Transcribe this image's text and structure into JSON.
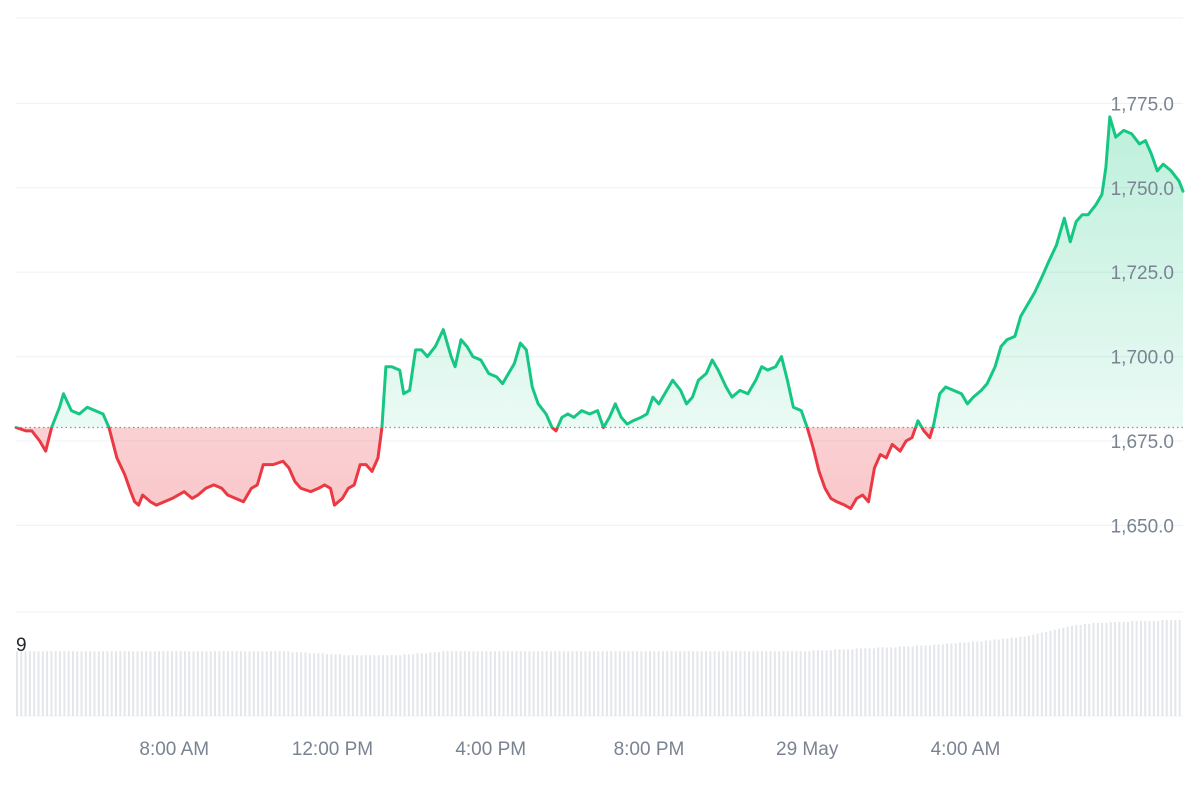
{
  "colors": {
    "up": "#16c784",
    "down": "#ea3943",
    "up_fill_top": "#16c784",
    "down_fill": "#ea3943",
    "grid": "#eef0f3",
    "axis_text": "#7a8392",
    "baseline": "#8a919e",
    "volume_bar": "#e3e6ea"
  },
  "chart_data": {
    "type": "area",
    "title": "",
    "xlabel": "",
    "ylabel": "",
    "baseline_value": 1679,
    "ylim": [
      1630,
      1800
    ],
    "y_ticks": [
      {
        "value": 1775,
        "label": "1,775.0"
      },
      {
        "value": 1750,
        "label": "1,750.0"
      },
      {
        "value": 1725,
        "label": "1,725.0"
      },
      {
        "value": 1700,
        "label": "1,700.0"
      },
      {
        "value": 1675,
        "label": "1,675.0"
      },
      {
        "value": 1650,
        "label": "1,650.0"
      }
    ],
    "x_ticks": [
      {
        "hour": 8,
        "label": "8:00 AM"
      },
      {
        "hour": 12,
        "label": "12:00 PM"
      },
      {
        "hour": 16,
        "label": "4:00 PM"
      },
      {
        "hour": 20,
        "label": "8:00 PM"
      },
      {
        "hour": 24,
        "label": "29 May"
      },
      {
        "hour": 28,
        "label": "4:00 AM"
      }
    ],
    "x_range_hours": [
      4,
      29.5
    ],
    "series": [
      {
        "values": [
          [
            4.0,
            1679
          ],
          [
            4.25,
            1678
          ],
          [
            4.4,
            1678
          ],
          [
            4.6,
            1675
          ],
          [
            4.75,
            1672
          ],
          [
            4.9,
            1679
          ],
          [
            5.1,
            1685
          ],
          [
            5.2,
            1689
          ],
          [
            5.4,
            1684
          ],
          [
            5.6,
            1683
          ],
          [
            5.8,
            1685
          ],
          [
            6.0,
            1684
          ],
          [
            6.2,
            1683
          ],
          [
            6.35,
            1679
          ],
          [
            6.55,
            1670
          ],
          [
            6.75,
            1665
          ],
          [
            6.9,
            1660
          ],
          [
            7.0,
            1657
          ],
          [
            7.1,
            1656
          ],
          [
            7.2,
            1659
          ],
          [
            7.4,
            1657
          ],
          [
            7.55,
            1656
          ],
          [
            7.75,
            1657
          ],
          [
            7.95,
            1658
          ],
          [
            8.1,
            1659
          ],
          [
            8.25,
            1660
          ],
          [
            8.45,
            1658
          ],
          [
            8.6,
            1659
          ],
          [
            8.8,
            1661
          ],
          [
            9.0,
            1662
          ],
          [
            9.2,
            1661
          ],
          [
            9.35,
            1659
          ],
          [
            9.55,
            1658
          ],
          [
            9.75,
            1657
          ],
          [
            9.95,
            1661
          ],
          [
            10.1,
            1662
          ],
          [
            10.25,
            1668
          ],
          [
            10.5,
            1668
          ],
          [
            10.75,
            1669
          ],
          [
            10.9,
            1667
          ],
          [
            11.05,
            1663
          ],
          [
            11.2,
            1661
          ],
          [
            11.45,
            1660
          ],
          [
            11.65,
            1661
          ],
          [
            11.8,
            1662
          ],
          [
            11.95,
            1661
          ],
          [
            12.05,
            1656
          ],
          [
            12.25,
            1658
          ],
          [
            12.4,
            1661
          ],
          [
            12.55,
            1662
          ],
          [
            12.7,
            1668
          ],
          [
            12.85,
            1668
          ],
          [
            13.0,
            1666
          ],
          [
            13.15,
            1670
          ],
          [
            13.25,
            1679
          ],
          [
            13.35,
            1697
          ],
          [
            13.5,
            1697
          ],
          [
            13.7,
            1696
          ],
          [
            13.8,
            1689
          ],
          [
            13.95,
            1690
          ],
          [
            14.1,
            1702
          ],
          [
            14.25,
            1702
          ],
          [
            14.4,
            1700
          ],
          [
            14.6,
            1703
          ],
          [
            14.8,
            1708
          ],
          [
            15.0,
            1700
          ],
          [
            15.1,
            1697
          ],
          [
            15.25,
            1705
          ],
          [
            15.4,
            1703
          ],
          [
            15.55,
            1700
          ],
          [
            15.75,
            1699
          ],
          [
            15.95,
            1695
          ],
          [
            16.15,
            1694
          ],
          [
            16.3,
            1692
          ],
          [
            16.45,
            1695
          ],
          [
            16.6,
            1698
          ],
          [
            16.75,
            1704
          ],
          [
            16.9,
            1702
          ],
          [
            17.05,
            1691
          ],
          [
            17.2,
            1686
          ],
          [
            17.4,
            1683
          ],
          [
            17.55,
            1679
          ],
          [
            17.65,
            1678
          ],
          [
            17.8,
            1682
          ],
          [
            17.95,
            1683
          ],
          [
            18.1,
            1682
          ],
          [
            18.3,
            1684
          ],
          [
            18.5,
            1683
          ],
          [
            18.7,
            1684
          ],
          [
            18.85,
            1679
          ],
          [
            19.0,
            1682
          ],
          [
            19.15,
            1686
          ],
          [
            19.3,
            1682
          ],
          [
            19.45,
            1680
          ],
          [
            19.6,
            1681
          ],
          [
            19.8,
            1682
          ],
          [
            19.95,
            1683
          ],
          [
            20.1,
            1688
          ],
          [
            20.25,
            1686
          ],
          [
            20.4,
            1689
          ],
          [
            20.6,
            1693
          ],
          [
            20.8,
            1690
          ],
          [
            20.95,
            1686
          ],
          [
            21.1,
            1688
          ],
          [
            21.25,
            1693
          ],
          [
            21.45,
            1695
          ],
          [
            21.6,
            1699
          ],
          [
            21.75,
            1696
          ],
          [
            21.95,
            1691
          ],
          [
            22.1,
            1688
          ],
          [
            22.3,
            1690
          ],
          [
            22.5,
            1689
          ],
          [
            22.7,
            1693
          ],
          [
            22.85,
            1697
          ],
          [
            23.0,
            1696
          ],
          [
            23.2,
            1697
          ],
          [
            23.35,
            1700
          ],
          [
            23.5,
            1693
          ],
          [
            23.65,
            1685
          ],
          [
            23.85,
            1684
          ],
          [
            24.0,
            1679
          ],
          [
            24.15,
            1673
          ],
          [
            24.3,
            1666
          ],
          [
            24.45,
            1661
          ],
          [
            24.6,
            1658
          ],
          [
            24.75,
            1657
          ],
          [
            24.95,
            1656
          ],
          [
            25.1,
            1655
          ],
          [
            25.25,
            1658
          ],
          [
            25.4,
            1659
          ],
          [
            25.55,
            1657
          ],
          [
            25.7,
            1667
          ],
          [
            25.85,
            1671
          ],
          [
            26.0,
            1670
          ],
          [
            26.15,
            1674
          ],
          [
            26.35,
            1672
          ],
          [
            26.5,
            1675
          ],
          [
            26.65,
            1676
          ],
          [
            26.8,
            1681
          ],
          [
            26.95,
            1678
          ],
          [
            27.1,
            1676
          ],
          [
            27.2,
            1680
          ],
          [
            27.35,
            1689
          ],
          [
            27.5,
            1691
          ],
          [
            27.7,
            1690
          ],
          [
            27.9,
            1689
          ],
          [
            28.05,
            1686
          ],
          [
            28.2,
            1688
          ],
          [
            28.4,
            1690
          ],
          [
            28.55,
            1692
          ],
          [
            28.75,
            1697
          ],
          [
            28.9,
            1703
          ],
          [
            29.05,
            1705
          ],
          [
            29.25,
            1706
          ],
          [
            29.4,
            1712
          ],
          [
            29.6,
            1716
          ],
          [
            29.75,
            1719
          ],
          [
            29.95,
            1724
          ],
          [
            30.1,
            1728
          ],
          [
            30.3,
            1733
          ],
          [
            30.5,
            1741
          ],
          [
            30.65,
            1734
          ],
          [
            30.8,
            1740
          ],
          [
            30.95,
            1742
          ],
          [
            31.1,
            1742
          ],
          [
            31.3,
            1745
          ],
          [
            31.45,
            1748
          ],
          [
            31.55,
            1756
          ],
          [
            31.65,
            1771
          ],
          [
            31.8,
            1765
          ],
          [
            32.0,
            1767
          ],
          [
            32.2,
            1766
          ],
          [
            32.4,
            1763
          ],
          [
            32.55,
            1764
          ],
          [
            32.7,
            1760
          ],
          [
            32.85,
            1755
          ],
          [
            33.0,
            1757
          ],
          [
            33.2,
            1755
          ],
          [
            33.4,
            1752
          ],
          [
            33.5,
            1749
          ]
        ]
      }
    ],
    "volume_label": "9",
    "volume_values": [
      0.66,
      0.66,
      0.66,
      0.66,
      0.66,
      0.66,
      0.66,
      0.66,
      0.66,
      0.66,
      0.66,
      0.66,
      0.66,
      0.66,
      0.66,
      0.66,
      0.66,
      0.66,
      0.66,
      0.66,
      0.66,
      0.66,
      0.66,
      0.66,
      0.66,
      0.66,
      0.66,
      0.66,
      0.66,
      0.66,
      0.66,
      0.66,
      0.66,
      0.66,
      0.66,
      0.66,
      0.66,
      0.66,
      0.66,
      0.66,
      0.66,
      0.66,
      0.66,
      0.66,
      0.66,
      0.66,
      0.66,
      0.66,
      0.66,
      0.66,
      0.66,
      0.66,
      0.66,
      0.66,
      0.66,
      0.66,
      0.66,
      0.66,
      0.66,
      0.66,
      0.66,
      0.66,
      0.66,
      0.66,
      0.65,
      0.65,
      0.65,
      0.65,
      0.64,
      0.64,
      0.64,
      0.64,
      0.63,
      0.63,
      0.63,
      0.63,
      0.62,
      0.62,
      0.62,
      0.62,
      0.62,
      0.62,
      0.62,
      0.62,
      0.62,
      0.62,
      0.62,
      0.62,
      0.62,
      0.62,
      0.63,
      0.63,
      0.63,
      0.64,
      0.64,
      0.64,
      0.65,
      0.65,
      0.65,
      0.66,
      0.66,
      0.66,
      0.66,
      0.66,
      0.66,
      0.66,
      0.66,
      0.66,
      0.66,
      0.66,
      0.66,
      0.66,
      0.66,
      0.66,
      0.66,
      0.66,
      0.66,
      0.66,
      0.66,
      0.66,
      0.66,
      0.66,
      0.66,
      0.66,
      0.66,
      0.66,
      0.66,
      0.66,
      0.66,
      0.66,
      0.66,
      0.66,
      0.66,
      0.66,
      0.66,
      0.66,
      0.66,
      0.66,
      0.66,
      0.66,
      0.66,
      0.66,
      0.66,
      0.66,
      0.66,
      0.66,
      0.66,
      0.66,
      0.66,
      0.66,
      0.66,
      0.66,
      0.66,
      0.66,
      0.66,
      0.66,
      0.66,
      0.66,
      0.66,
      0.66,
      0.66,
      0.66,
      0.66,
      0.66,
      0.66,
      0.66,
      0.66,
      0.66,
      0.66,
      0.66,
      0.66,
      0.66,
      0.66,
      0.66,
      0.66,
      0.66,
      0.66,
      0.66,
      0.66,
      0.66,
      0.66,
      0.66,
      0.66,
      0.66,
      0.66,
      0.67,
      0.67,
      0.67,
      0.67,
      0.67,
      0.68,
      0.68,
      0.68,
      0.68,
      0.68,
      0.69,
      0.69,
      0.69,
      0.69,
      0.69,
      0.7,
      0.7,
      0.7,
      0.7,
      0.7,
      0.71,
      0.71,
      0.71,
      0.71,
      0.72,
      0.72,
      0.72,
      0.72,
      0.73,
      0.73,
      0.73,
      0.74,
      0.74,
      0.74,
      0.75,
      0.75,
      0.75,
      0.76,
      0.76,
      0.76,
      0.77,
      0.77,
      0.78,
      0.78,
      0.79,
      0.79,
      0.8,
      0.8,
      0.81,
      0.81,
      0.82,
      0.83,
      0.84,
      0.85,
      0.86,
      0.87,
      0.88,
      0.89,
      0.9,
      0.91,
      0.92,
      0.93,
      0.93,
      0.94,
      0.94,
      0.95,
      0.95,
      0.95,
      0.95,
      0.96,
      0.96,
      0.96,
      0.96,
      0.96,
      0.97,
      0.97,
      0.97,
      0.97,
      0.97,
      0.97,
      0.97,
      0.98,
      0.98,
      0.98,
      0.98,
      0.98
    ]
  }
}
